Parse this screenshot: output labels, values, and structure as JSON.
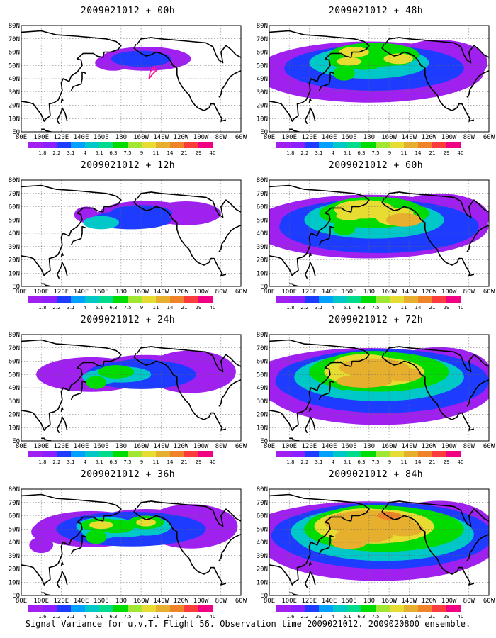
{
  "caption": "Signal Variance for u,v,T. Flight 56. Observation time 2009021012. 2009020800 ensemble.",
  "chart_data": {
    "type": "heatmap",
    "x_ticks": [
      "80E",
      "100E",
      "120E",
      "140E",
      "160E",
      "180",
      "160W",
      "140W",
      "120W",
      "100W",
      "80W",
      "60W"
    ],
    "y_ticks": [
      "EQ",
      "10N",
      "20N",
      "30N",
      "40N",
      "50N",
      "60N",
      "70N",
      "80N"
    ],
    "colorbar": {
      "labels": [
        "1.8",
        "2.2",
        "3.1",
        "4",
        "5.1",
        "6.3",
        "7.5",
        "9",
        "11",
        "14",
        "21",
        "29",
        "40"
      ],
      "labels_36h_84h": [
        "1.6",
        "2.2",
        "3.1",
        "4",
        "5.1",
        "6.3",
        "7.5",
        "9",
        "11",
        "14",
        "21",
        "29",
        "40"
      ],
      "colors": [
        "#a020f0",
        "#8c1eff",
        "#1e3cff",
        "#00a0ff",
        "#00c8c8",
        "#00dc8c",
        "#00dc00",
        "#a0e632",
        "#e6dc32",
        "#e6af2d",
        "#f08228",
        "#fa3c3c",
        "#f00082"
      ]
    },
    "panels": [
      {
        "title": "2009021012 + 00h",
        "level": 0
      },
      {
        "title": "2009021012 + 12h",
        "level": 1
      },
      {
        "title": "2009021012 + 24h",
        "level": 2
      },
      {
        "title": "2009021012 + 36h",
        "level": 3
      },
      {
        "title": "2009021012 + 48h",
        "level": 4
      },
      {
        "title": "2009021012 + 60h",
        "level": 5
      },
      {
        "title": "2009021012 + 72h",
        "level": 6
      },
      {
        "title": "2009021012 + 84h",
        "level": 7
      }
    ]
  }
}
